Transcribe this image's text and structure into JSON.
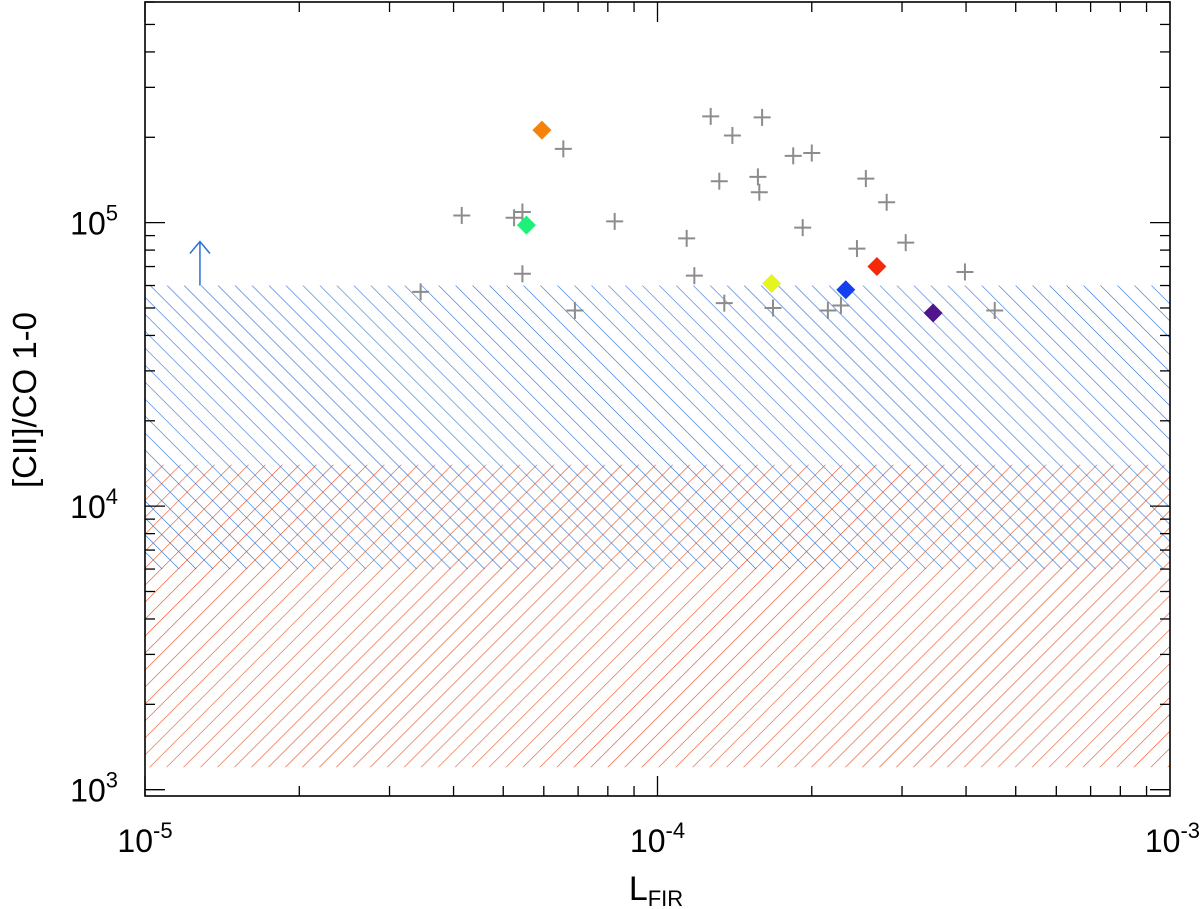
{
  "chart_data": {
    "type": "scatter",
    "xscale": "log",
    "yscale": "log",
    "xlim": [
      1e-05,
      0.001
    ],
    "ylim": [
      950,
      600000
    ],
    "xlabel": {
      "main": "L",
      "sub": "FIR"
    },
    "ylabel": "[CII]/CO 1-0",
    "xticks": [
      {
        "value": 1e-05,
        "base": "10",
        "exp": "-5"
      },
      {
        "value": 0.0001,
        "base": "10",
        "exp": "-4"
      },
      {
        "value": 0.001,
        "base": "10",
        "exp": "-3"
      }
    ],
    "yticks": [
      {
        "value": 1000,
        "base": "10",
        "exp": "3"
      },
      {
        "value": 10000,
        "base": "10",
        "exp": "4"
      },
      {
        "value": 100000,
        "base": "10",
        "exp": "5"
      }
    ],
    "bands": [
      {
        "name": "orange-hatched-range",
        "y": [
          1200,
          14000
        ],
        "color": "#e8501e",
        "hatch": "diagonal-down-right"
      },
      {
        "name": "blue-hatched-range",
        "y": [
          6000,
          60000
        ],
        "color": "#2a6fd6",
        "hatch": "diagonal-up-right"
      }
    ],
    "series": [
      {
        "name": "comparison-sample",
        "marker": "plus",
        "color": "#8c8c8c",
        "points": [
          [
            3.45e-05,
            57000
          ],
          [
            4.15e-05,
            106000
          ],
          [
            5.25e-05,
            104000
          ],
          [
            5.45e-05,
            109000
          ],
          [
            5.45e-05,
            66000
          ],
          [
            6.55e-05,
            182000
          ],
          [
            6.9e-05,
            49000
          ],
          [
            8.25e-05,
            101000
          ],
          [
            0.000114,
            88000
          ],
          [
            0.000118,
            65000
          ],
          [
            0.000127,
            237000
          ],
          [
            0.000132,
            140000
          ],
          [
            0.000135,
            52000
          ],
          [
            0.00014,
            203000
          ],
          [
            0.000157,
            145000
          ],
          [
            0.000158,
            128000
          ],
          [
            0.00016,
            235000
          ],
          [
            0.000168,
            50000
          ],
          [
            0.000184,
            172000
          ],
          [
            0.000192,
            96000
          ],
          [
            0.0002,
            176000
          ],
          [
            0.000215,
            49000
          ],
          [
            0.000228,
            51000
          ],
          [
            0.000245,
            81000
          ],
          [
            0.000255,
            143000
          ],
          [
            0.00028,
            118000
          ],
          [
            0.000305,
            85000
          ],
          [
            0.000398,
            67000
          ],
          [
            0.000455,
            49000
          ]
        ]
      },
      {
        "name": "highlighted-sources",
        "marker": "diamond",
        "points": [
          {
            "x": 5.95e-05,
            "y": 212000,
            "color": "#f5820a"
          },
          {
            "x": 5.55e-05,
            "y": 98000,
            "color": "#1ef07a"
          },
          {
            "x": 0.000167,
            "y": 61000,
            "color": "#e6f51e"
          },
          {
            "x": 0.000233,
            "y": 58000,
            "color": "#1440f0"
          },
          {
            "x": 0.000268,
            "y": 70000,
            "color": "#f5280a"
          },
          {
            "x": 0.000345,
            "y": 48000,
            "color": "#50148c"
          }
        ]
      }
    ],
    "annotations": [
      {
        "name": "lower-limit-arrow",
        "x": 1.28e-05,
        "y": 60000,
        "direction": "up",
        "color": "#2a6fd6"
      }
    ]
  }
}
